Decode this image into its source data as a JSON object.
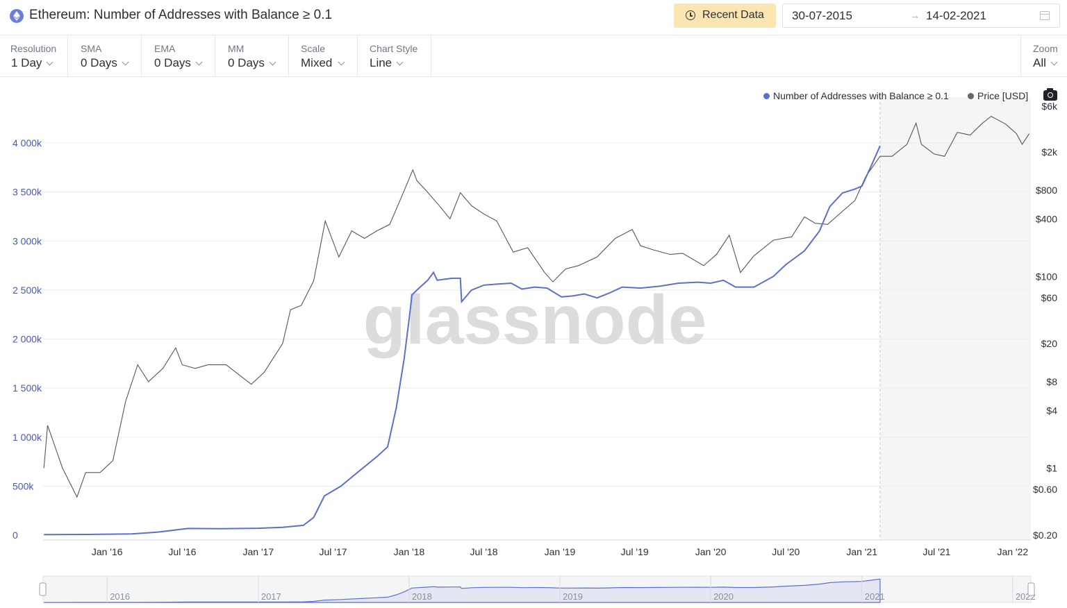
{
  "header": {
    "title": "Ethereum: Number of Addresses with Balance ≥ 0.1",
    "recent_button": "Recent Data",
    "date_from": "30-07-2015",
    "date_arrow": "→",
    "date_to": "14-02-2021"
  },
  "controls": [
    {
      "caption": "Resolution",
      "value": "1 Day"
    },
    {
      "caption": "SMA",
      "value": "0 Days"
    },
    {
      "caption": "EMA",
      "value": "0 Days"
    },
    {
      "caption": "MM",
      "value": "0 Days"
    },
    {
      "caption": "Scale",
      "value": "Mixed"
    },
    {
      "caption": "Chart Style",
      "value": "Line"
    }
  ],
  "zoom": {
    "caption": "Zoom",
    "value": "All"
  },
  "watermark": "glassnode",
  "colors": {
    "addresses": "#5b6fd0",
    "price": "#555555",
    "grid": "#ececef",
    "axis_left": "#4a5aa8"
  },
  "chart_data": {
    "type": "line",
    "x_ticks": [
      "Jan '16",
      "Jul '16",
      "Jan '17",
      "Jul '17",
      "Jan '18",
      "Jul '18",
      "Jan '19",
      "Jul '19",
      "Jan '20",
      "Jul '20",
      "Jan '21",
      "Jul '21",
      "Jan '22"
    ],
    "y_left_ticks": [
      "0",
      "500k",
      "1 000k",
      "1 500k",
      "2 000k",
      "2 500k",
      "3 000k",
      "3 500k",
      "4 000k"
    ],
    "y_right_ticks": [
      "$0.20",
      "$0.60",
      "$1",
      "$4",
      "$8",
      "$20",
      "$60",
      "$100",
      "$400",
      "$800",
      "$2k",
      "$6k"
    ],
    "y_left_range": [
      0,
      4000000
    ],
    "y_right_scale": "log",
    "x_range": [
      "2015-07-30",
      "2022-02-14"
    ],
    "highlight_from": "2021-02-14",
    "legend_position": "top-right",
    "navigator_labels": [
      "2016",
      "2017",
      "2018",
      "2019",
      "2020",
      "2021",
      "2022"
    ],
    "series": [
      {
        "name": "Number of Addresses with Balance ≥ 0.1",
        "axis": "left",
        "points": [
          [
            "2015-08-01",
            5000
          ],
          [
            "2015-12-01",
            8000
          ],
          [
            "2016-03-01",
            12000
          ],
          [
            "2016-05-01",
            30000
          ],
          [
            "2016-07-15",
            68000
          ],
          [
            "2016-10-01",
            65000
          ],
          [
            "2017-01-01",
            70000
          ],
          [
            "2017-03-01",
            80000
          ],
          [
            "2017-04-20",
            100000
          ],
          [
            "2017-05-15",
            180000
          ],
          [
            "2017-06-10",
            400000
          ],
          [
            "2017-07-20",
            500000
          ],
          [
            "2017-09-01",
            650000
          ],
          [
            "2017-10-15",
            800000
          ],
          [
            "2017-11-10",
            900000
          ],
          [
            "2017-12-01",
            1300000
          ],
          [
            "2017-12-20",
            1800000
          ],
          [
            "2018-01-01",
            2200000
          ],
          [
            "2018-01-08",
            2450000
          ],
          [
            "2018-01-20",
            2500000
          ],
          [
            "2018-02-15",
            2600000
          ],
          [
            "2018-03-01",
            2680000
          ],
          [
            "2018-03-10",
            2600000
          ],
          [
            "2018-04-15",
            2620000
          ],
          [
            "2018-05-05",
            2620000
          ],
          [
            "2018-05-08",
            2380000
          ],
          [
            "2018-06-01",
            2500000
          ],
          [
            "2018-07-01",
            2550000
          ],
          [
            "2018-08-01",
            2560000
          ],
          [
            "2018-09-05",
            2570000
          ],
          [
            "2018-10-01",
            2510000
          ],
          [
            "2018-11-01",
            2530000
          ],
          [
            "2018-12-01",
            2520000
          ],
          [
            "2019-01-05",
            2430000
          ],
          [
            "2019-02-01",
            2440000
          ],
          [
            "2019-03-01",
            2460000
          ],
          [
            "2019-04-01",
            2420000
          ],
          [
            "2019-05-01",
            2470000
          ],
          [
            "2019-06-01",
            2530000
          ],
          [
            "2019-07-15",
            2520000
          ],
          [
            "2019-09-01",
            2540000
          ],
          [
            "2019-10-15",
            2570000
          ],
          [
            "2019-12-01",
            2580000
          ],
          [
            "2020-01-01",
            2570000
          ],
          [
            "2020-02-01",
            2600000
          ],
          [
            "2020-03-01",
            2530000
          ],
          [
            "2020-04-15",
            2530000
          ],
          [
            "2020-06-01",
            2640000
          ],
          [
            "2020-07-01",
            2760000
          ],
          [
            "2020-08-15",
            2900000
          ],
          [
            "2020-09-20",
            3100000
          ],
          [
            "2020-10-15",
            3350000
          ],
          [
            "2020-11-15",
            3490000
          ],
          [
            "2020-12-15",
            3530000
          ],
          [
            "2021-01-01",
            3560000
          ],
          [
            "2021-01-25",
            3780000
          ],
          [
            "2021-02-14",
            3970000
          ]
        ]
      },
      {
        "name": "Price [USD]",
        "axis": "right",
        "points": [
          [
            "2015-08-01",
            1.0
          ],
          [
            "2015-08-10",
            2.8
          ],
          [
            "2015-09-15",
            1.0
          ],
          [
            "2015-10-20",
            0.5
          ],
          [
            "2015-11-10",
            0.9
          ],
          [
            "2015-12-15",
            0.9
          ],
          [
            "2016-01-15",
            1.2
          ],
          [
            "2016-02-15",
            5.0
          ],
          [
            "2016-03-15",
            12.0
          ],
          [
            "2016-04-10",
            8.0
          ],
          [
            "2016-05-15",
            11.0
          ],
          [
            "2016-06-15",
            18.0
          ],
          [
            "2016-07-01",
            12.0
          ],
          [
            "2016-08-01",
            11.0
          ],
          [
            "2016-09-01",
            12.0
          ],
          [
            "2016-10-15",
            12.0
          ],
          [
            "2016-12-15",
            7.5
          ],
          [
            "2017-01-15",
            10.0
          ],
          [
            "2017-03-01",
            20.0
          ],
          [
            "2017-03-20",
            45.0
          ],
          [
            "2017-04-15",
            50.0
          ],
          [
            "2017-05-15",
            90.0
          ],
          [
            "2017-06-12",
            380.0
          ],
          [
            "2017-07-15",
            160.0
          ],
          [
            "2017-08-15",
            300.0
          ],
          [
            "2017-09-15",
            250.0
          ],
          [
            "2017-10-15",
            300.0
          ],
          [
            "2017-11-15",
            350.0
          ],
          [
            "2017-12-15",
            700.0
          ],
          [
            "2018-01-10",
            1300.0
          ],
          [
            "2018-01-20",
            1000.0
          ],
          [
            "2018-02-10",
            800.0
          ],
          [
            "2018-03-15",
            550.0
          ],
          [
            "2018-04-10",
            400.0
          ],
          [
            "2018-05-05",
            750.0
          ],
          [
            "2018-06-01",
            550.0
          ],
          [
            "2018-07-01",
            450.0
          ],
          [
            "2018-08-01",
            380.0
          ],
          [
            "2018-09-10",
            180.0
          ],
          [
            "2018-10-15",
            200.0
          ],
          [
            "2018-11-25",
            110.0
          ],
          [
            "2018-12-15",
            88.0
          ],
          [
            "2019-01-15",
            120.0
          ],
          [
            "2019-02-15",
            130.0
          ],
          [
            "2019-04-01",
            160.0
          ],
          [
            "2019-05-15",
            250.0
          ],
          [
            "2019-06-25",
            310.0
          ],
          [
            "2019-07-15",
            210.0
          ],
          [
            "2019-08-15",
            190.0
          ],
          [
            "2019-09-25",
            170.0
          ],
          [
            "2019-10-25",
            175.0
          ],
          [
            "2019-12-15",
            130.0
          ],
          [
            "2020-01-15",
            170.0
          ],
          [
            "2020-02-15",
            270.0
          ],
          [
            "2020-03-13",
            110.0
          ],
          [
            "2020-04-15",
            165.0
          ],
          [
            "2020-06-01",
            240.0
          ],
          [
            "2020-07-15",
            260.0
          ],
          [
            "2020-08-15",
            420.0
          ],
          [
            "2020-09-10",
            360.0
          ],
          [
            "2020-10-10",
            350.0
          ],
          [
            "2020-11-15",
            480.0
          ],
          [
            "2020-12-15",
            620.0
          ],
          [
            "2021-01-10",
            1100.0
          ],
          [
            "2021-02-14",
            1800.0
          ],
          [
            "2021-03-15",
            1800.0
          ],
          [
            "2021-04-20",
            2400.0
          ],
          [
            "2021-05-12",
            4000.0
          ],
          [
            "2021-05-25",
            2400.0
          ],
          [
            "2021-06-25",
            1900.0
          ],
          [
            "2021-07-20",
            1800.0
          ],
          [
            "2021-08-20",
            3200.0
          ],
          [
            "2021-09-20",
            3000.0
          ],
          [
            "2021-10-20",
            4000.0
          ],
          [
            "2021-11-10",
            4700.0
          ],
          [
            "2021-12-15",
            3900.0
          ],
          [
            "2022-01-10",
            3100.0
          ],
          [
            "2022-01-24",
            2400.0
          ],
          [
            "2022-02-10",
            3100.0
          ]
        ]
      }
    ]
  }
}
